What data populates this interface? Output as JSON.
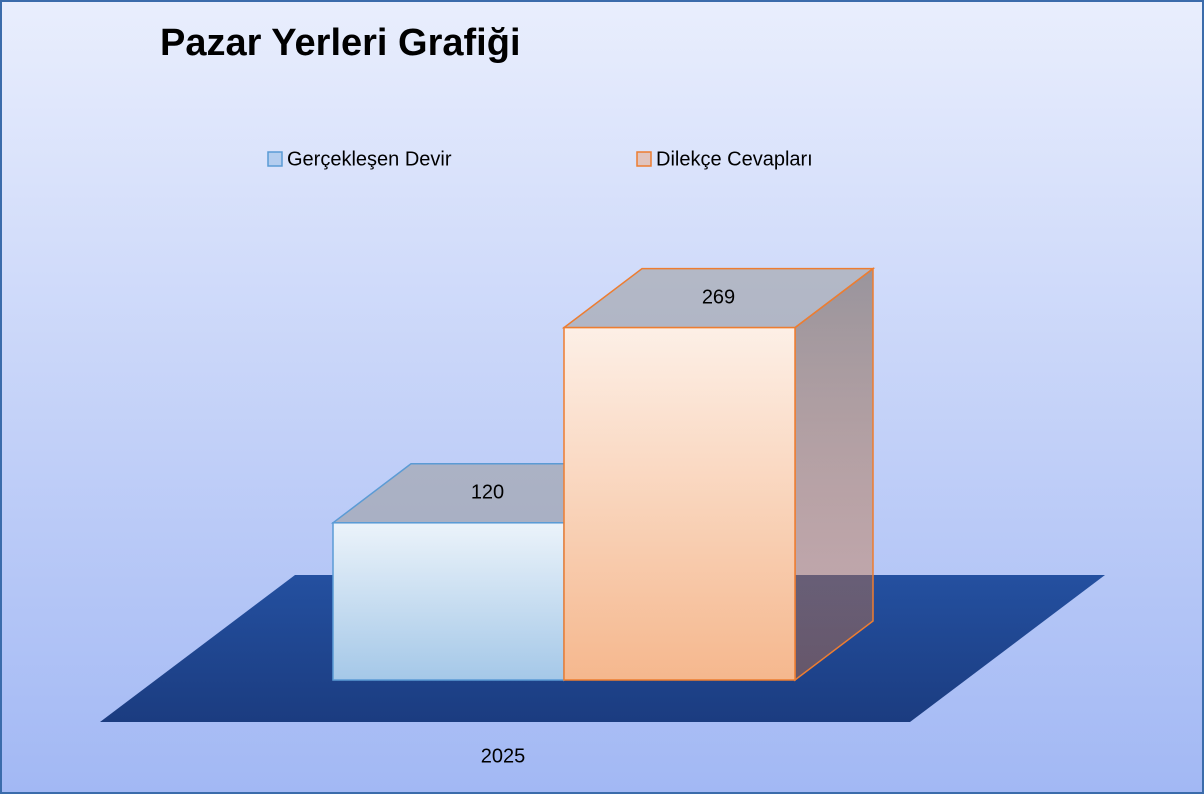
{
  "chart_data": {
    "type": "bar3d",
    "title": "Pazar Yerleri Grafiği",
    "categories": [
      "2025"
    ],
    "series": [
      {
        "name": "Gerçekleşen Devir",
        "color": "#5b9bd5",
        "values": [
          120
        ]
      },
      {
        "name": "Dilekçe Cevapları",
        "color": "#ed7d31",
        "values": [
          269
        ]
      }
    ],
    "ylim": [
      0,
      300
    ],
    "legend": "top"
  }
}
